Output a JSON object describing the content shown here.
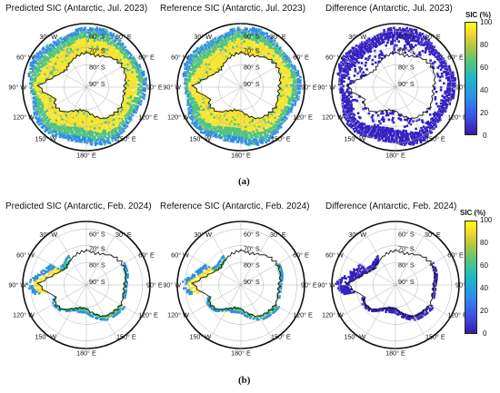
{
  "panels": [
    {
      "title": "Predicted SIC (Antarctic, Jul. 2023)",
      "kind": "winter"
    },
    {
      "title": "Reference SIC (Antarctic, Jul. 2023)",
      "kind": "winter"
    },
    {
      "title": "Difference (Antarctic, Jul. 2023)",
      "kind": "winter-diff"
    },
    {
      "title": "Predicted SIC (Antarctic, Feb. 2024)",
      "kind": "summer"
    },
    {
      "title": "Reference SIC (Antarctic, Feb. 2024)",
      "kind": "summer"
    },
    {
      "title": "Difference (Antarctic, Feb. 2024)",
      "kind": "summer-diff"
    }
  ],
  "sublabels": {
    "a": "(a)",
    "b": "(b)"
  },
  "map_labels": {
    "lon": [
      "30° W",
      "30° E",
      "60° W",
      "60° E",
      "90° W",
      "90° E",
      "120° W",
      "120° E",
      "150° W",
      "150° E",
      "180° E"
    ],
    "lat": [
      "60° S",
      "70° S",
      "80° S",
      "90° S"
    ]
  },
  "colorbar": {
    "title": "SIC (%)",
    "ticks": [
      "100",
      "80",
      "60",
      "40",
      "20",
      "0"
    ]
  },
  "colors": {
    "ice_high": "#f7e431",
    "ice_mid": "#50c47e",
    "ice_low": "#2a8fe6",
    "diff": "#3520c4",
    "coast": "#111111",
    "grid": "#b0b0b0"
  }
}
